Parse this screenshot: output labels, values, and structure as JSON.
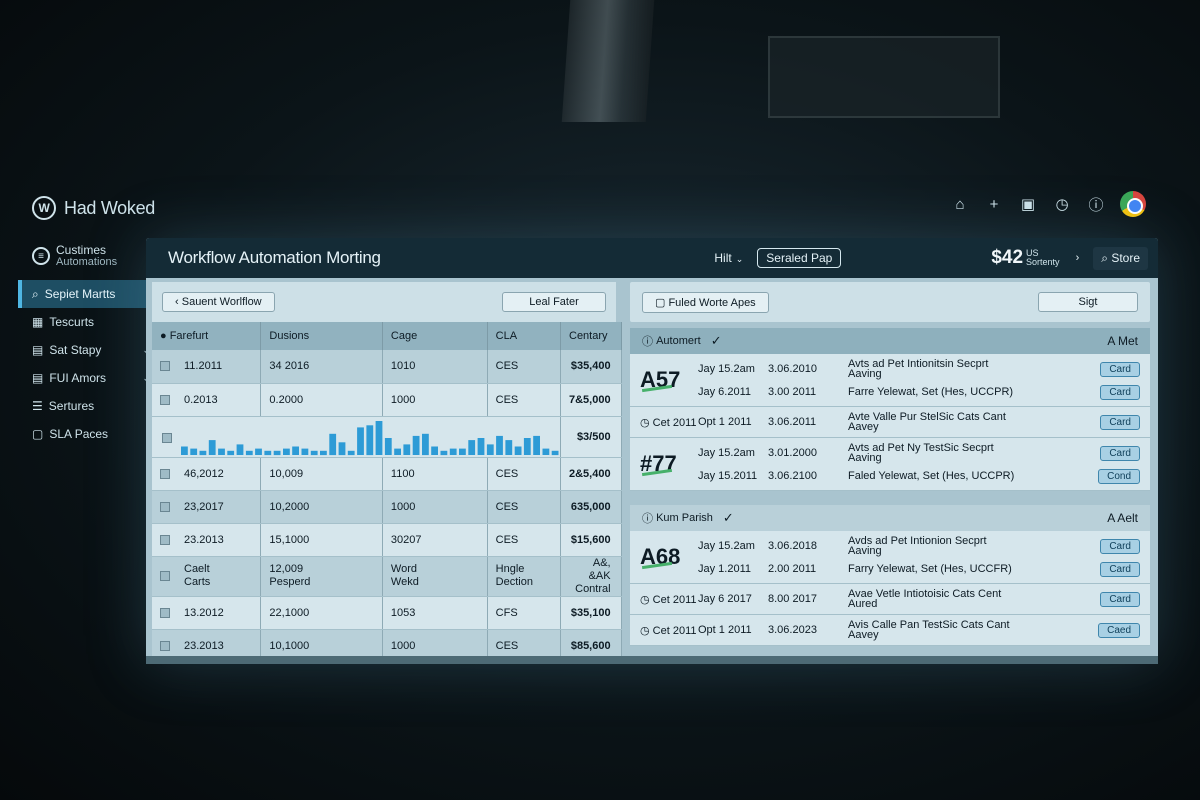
{
  "app": {
    "brand": "Had Woked"
  },
  "top_icons": [
    "home-icon",
    "plus-icon",
    "window-icon",
    "clock-icon",
    "info-icon",
    "browser-icon"
  ],
  "sidebar": {
    "header_line1": "Custimes",
    "header_line2": "Automations",
    "items": [
      {
        "label": "Sepiet Martts",
        "icon": "search-icon",
        "active": true
      },
      {
        "label": "Tescurts",
        "icon": "grid-icon"
      },
      {
        "label": "Sat Stapy",
        "icon": "stack-icon",
        "chevron": true
      },
      {
        "label": "FUI Amors",
        "icon": "stack-icon",
        "chevron": true
      },
      {
        "label": "Sertures",
        "icon": "list-icon"
      },
      {
        "label": "SLA Paces",
        "icon": "doc-icon"
      }
    ]
  },
  "header": {
    "title": "Workflow Automation Morting",
    "hit_label": "Hilt",
    "pill_label": "Seraled Pap",
    "price": "$42",
    "price_sub1": "US",
    "price_sub2": "Sortenty",
    "store_label": "Store"
  },
  "left": {
    "back_button": "Sauent Worlflow",
    "filter_button": "Leal Fater",
    "columns": [
      "Farefurt",
      "Dusions",
      "Cage",
      "CLA",
      "Centary"
    ],
    "rows": [
      {
        "c1": "11.2011",
        "c2": "34 2016",
        "c3": "1010",
        "c4": "CES",
        "c5": "$35,400"
      },
      {
        "c1": "0.2013",
        "c2": "0.2000",
        "c3": "1000",
        "c4": "CES",
        "c5": "7&5,000"
      }
    ],
    "chart_value_label": "$3/500",
    "rows2": [
      {
        "c1": "46,2012",
        "c2": "10,009",
        "c3": "1100",
        "c4": "CES",
        "c5": "2&5,400"
      },
      {
        "c1": "23,2017",
        "c2": "10,2000",
        "c3": "1000",
        "c4": "CES",
        "c5": "635,000"
      },
      {
        "c1": "23.2013",
        "c2": "15,1000",
        "c3": "30207",
        "c4": "CES",
        "c5": "$15,600"
      }
    ],
    "multi_row": {
      "c1a": "Caelt",
      "c1b": "Carts",
      "c2a": "12,009",
      "c2b": "Pesperd",
      "c3a": "Word",
      "c3b": "Wekd",
      "c4a": "Hngle",
      "c4b": "Dection",
      "c5a": "A&, &AK",
      "c5b": "Contral"
    },
    "rows3": [
      {
        "c1": "13.2012",
        "c2": "22,1000",
        "c3": "1053",
        "c4": "CFS",
        "c5": "$35,100"
      },
      {
        "c1": "23.2013",
        "c2": "10,1000",
        "c3": "1000",
        "c4": "CES",
        "c5": "$85,600"
      }
    ]
  },
  "chart_data": {
    "type": "bar",
    "values": [
      4,
      3,
      2,
      7,
      3,
      2,
      5,
      2,
      3,
      2,
      2,
      3,
      4,
      3,
      2,
      2,
      10,
      6,
      2,
      13,
      14,
      16,
      8,
      3,
      5,
      9,
      10,
      4,
      2,
      3,
      3,
      7,
      8,
      5,
      9,
      7,
      4,
      8,
      9,
      3,
      2
    ]
  },
  "right": {
    "top_button": "Fuled Worte Apes",
    "top_right_button": "Sigt",
    "section1": {
      "title": "Automert",
      "right": "A Met",
      "tickets": [
        {
          "id": "A57",
          "lines": [
            {
              "c1": "Jay 15.2am",
              "c2": "3.06.2010",
              "c3": "Avts ad Pet Intionitsin Secprt",
              "c3b": "Aaving",
              "button": "Card"
            },
            {
              "c1": "Jay 6.2011",
              "c2": "3.00 2011",
              "c3": "Farre Yelewat, Set (Hes, UCCPR)",
              "c3b": "",
              "button": "Card"
            }
          ]
        },
        {
          "id": "Cet 2011",
          "small": true,
          "lines": [
            {
              "c1": "Opt 1 2011",
              "c2": "3.06.2011",
              "c3": "Avte Valle Pur StelSic Cats Cant",
              "c3b": "Aavey",
              "button": "Card"
            }
          ]
        },
        {
          "id": "#77",
          "lines": [
            {
              "c1": "Jay 15.2am",
              "c2": "3.01.2000",
              "c3": "Avts ad Pet Ny TestSic Secprt",
              "c3b": "Aaving",
              "button": "Card"
            },
            {
              "c1": "Jay 15.2011",
              "c2": "3.06.2100",
              "c3": "Faled Yelewat, Set (Hes, UCCPR)",
              "c3b": "",
              "button": "Cond"
            }
          ]
        }
      ]
    },
    "section2": {
      "title": "Kum Parish",
      "right": "A Aelt",
      "tickets": [
        {
          "id": "A68",
          "lines": [
            {
              "c1": "Jay 15.2am",
              "c2": "3.06.2018",
              "c3": "Avds ad Pet Intionion Secprt",
              "c3b": "Aaving",
              "button": "Card"
            },
            {
              "c1": "Jay 1.2011",
              "c2": "2.00 2011",
              "c3": "Farry Yelewat, Set (Hes, UCCFR)",
              "c3b": "",
              "button": "Card"
            }
          ]
        },
        {
          "id": "Cet 2011",
          "small": true,
          "lines": [
            {
              "c1": "Jay 6 2017",
              "c2": "8.00 2017",
              "c3": "Avae Vetle Intiotoisic Cats Cent",
              "c3b": "Aured",
              "button": "Card"
            }
          ]
        },
        {
          "id": "Cet 2011",
          "small": true,
          "lines": [
            {
              "c1": "Opt 1 2011",
              "c2": "3.06.2023",
              "c3": "Avis Calle Pan TestSic Cats Cant",
              "c3b": "Aavey",
              "button": "Caed"
            }
          ]
        }
      ]
    }
  }
}
